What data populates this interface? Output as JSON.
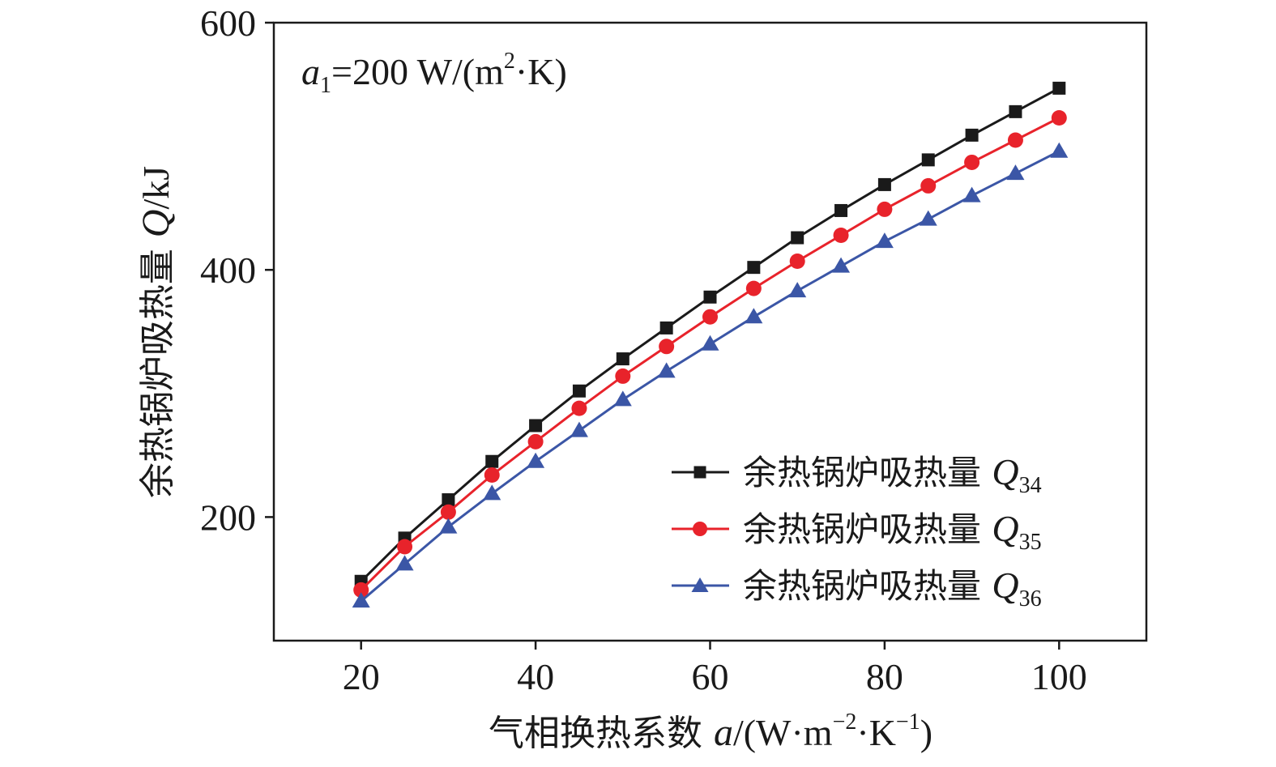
{
  "chart_data": {
    "type": "line",
    "x": [
      20,
      25,
      30,
      35,
      40,
      45,
      50,
      55,
      60,
      65,
      70,
      75,
      80,
      85,
      90,
      95,
      100
    ],
    "xlim": [
      10,
      110
    ],
    "ylim": [
      100,
      600
    ],
    "xticks": [
      20,
      40,
      60,
      80,
      100
    ],
    "yticks": [
      200,
      400,
      600
    ],
    "xticks_labels": [
      "20",
      "40",
      "60",
      "80",
      "100"
    ],
    "yticks_labels": [
      "200",
      "400",
      "600"
    ],
    "xlabel": {
      "prefix": "气相换热系数 ",
      "var": "a",
      "unit_open": "/(W·m",
      "exp1": "−2",
      "mid": "·K",
      "exp2": "−1",
      "close": ")"
    },
    "ylabel": {
      "prefix": "余热锅炉吸热量 ",
      "var": "Q",
      "unit": "/kJ"
    },
    "annotation": {
      "var": "a",
      "sub": "1",
      "eq": "=200 W/(m",
      "sup": "2",
      "tail": "·K)"
    },
    "legend_position": "lower-right",
    "grid": false,
    "series": [
      {
        "name": "余热锅炉吸热量 Q34",
        "label_text": "余热锅炉吸热量 ",
        "label_var": "Q",
        "label_sub": "34",
        "color": "#1a1a1a",
        "marker": "square",
        "values": [
          148,
          183,
          214,
          245,
          274,
          302,
          328,
          353,
          378,
          402,
          426,
          448,
          469,
          489,
          509,
          528,
          547
        ]
      },
      {
        "name": "余热锅炉吸热量 Q35",
        "label_text": "余热锅炉吸热量 ",
        "label_var": "Q",
        "label_sub": "35",
        "color": "#e8232b",
        "marker": "circle",
        "values": [
          141,
          176,
          204,
          234,
          261,
          288,
          314,
          338,
          362,
          385,
          407,
          428,
          449,
          468,
          487,
          505,
          523
        ]
      },
      {
        "name": "余热锅炉吸热量 Q36",
        "label_text": "余热锅炉吸热量 ",
        "label_var": "Q",
        "label_sub": "36",
        "color": "#3b56a6",
        "marker": "triangle",
        "values": [
          132,
          162,
          192,
          219,
          245,
          270,
          295,
          318,
          340,
          362,
          383,
          403,
          423,
          441,
          460,
          478,
          496
        ]
      }
    ]
  }
}
